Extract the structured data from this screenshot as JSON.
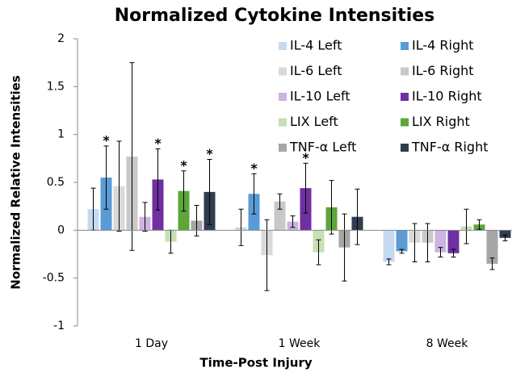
{
  "chart_data": {
    "type": "bar",
    "title": "Normalized Cytokine Intensities",
    "x_label": "Time-Post Injury",
    "y_label": "Normalized Relative Intensities",
    "categories": [
      "1 Day",
      "1 Week",
      "8 Week"
    ],
    "ylim": [
      -1,
      2
    ],
    "yticks": [
      -1,
      -0.5,
      0,
      0.5,
      1,
      1.5,
      2
    ],
    "grid": false,
    "legend": "upper right",
    "series": [
      {
        "name": "IL-4 Left",
        "color": "#c5d9f1",
        "values": [
          0.22,
          0.03,
          -0.33
        ],
        "errors": [
          0.22,
          0.19,
          0.03
        ],
        "markers": [
          null,
          null,
          null
        ]
      },
      {
        "name": "IL-4 Right",
        "color": "#5b9bd5",
        "values": [
          0.55,
          0.38,
          -0.22
        ],
        "errors": [
          0.33,
          0.21,
          0.02
        ],
        "markers": [
          "*",
          "*",
          null
        ]
      },
      {
        "name": "IL-6 Left",
        "color": "#d9d9d9",
        "values": [
          0.46,
          -0.26,
          -0.13
        ],
        "errors": [
          0.47,
          0.37,
          0.2
        ],
        "markers": [
          null,
          null,
          null
        ]
      },
      {
        "name": "IL-6 Right",
        "color": "#c8c8c8",
        "values": [
          0.77,
          0.3,
          -0.13
        ],
        "errors": [
          0.98,
          0.08,
          0.2
        ],
        "markers": [
          null,
          null,
          null
        ]
      },
      {
        "name": "IL-10 Left",
        "color": "#ccb3e0",
        "values": [
          0.14,
          0.09,
          -0.23
        ],
        "errors": [
          0.15,
          0.06,
          0.05
        ],
        "markers": [
          null,
          null,
          null
        ]
      },
      {
        "name": "IL-10 Right",
        "color": "#7030a0",
        "values": [
          0.53,
          0.44,
          -0.24
        ],
        "errors": [
          0.32,
          0.26,
          0.04
        ],
        "markers": [
          "*",
          "*",
          null
        ]
      },
      {
        "name": "LIX Left",
        "color": "#c6e0b4",
        "values": [
          -0.12,
          -0.23,
          0.04
        ],
        "errors": [
          0.12,
          0.13,
          0.18
        ],
        "markers": [
          null,
          null,
          null
        ]
      },
      {
        "name": "LIX Right",
        "color": "#5ea53a",
        "values": [
          0.41,
          0.24,
          0.06
        ],
        "errors": [
          0.21,
          0.28,
          0.05
        ],
        "markers": [
          "*",
          null,
          null
        ]
      },
      {
        "name": "TNF-α Left",
        "color": "#a6a6a6",
        "values": [
          0.1,
          -0.18,
          -0.35
        ],
        "errors": [
          0.16,
          0.35,
          0.06
        ],
        "markers": [
          null,
          null,
          null
        ]
      },
      {
        "name": "TNF-α Right",
        "color": "#2f3d4f",
        "values": [
          0.4,
          0.14,
          -0.08
        ],
        "errors": [
          0.34,
          0.29,
          0.03
        ],
        "markers": [
          "*",
          null,
          null
        ]
      }
    ]
  }
}
